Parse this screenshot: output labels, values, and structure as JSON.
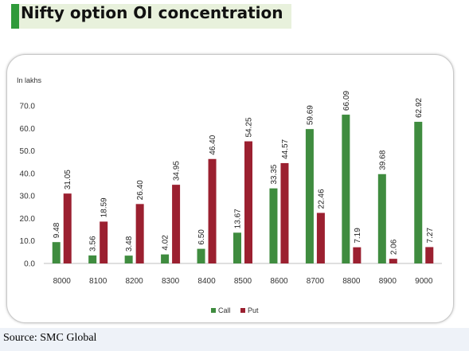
{
  "header": {
    "title": "Nifty option OI concentration"
  },
  "footer": {
    "source": "Source: SMC Global"
  },
  "colors": {
    "call": "#3f8c3f",
    "put": "#9b2030",
    "title_accent": "#2f9a3a"
  },
  "chart_data": {
    "type": "bar",
    "unit_label": "In lakhs",
    "categories": [
      "8000",
      "8100",
      "8200",
      "8300",
      "8400",
      "8500",
      "8600",
      "8700",
      "8800",
      "8900",
      "9000"
    ],
    "series": [
      {
        "name": "Call",
        "values": [
          9.48,
          3.56,
          3.48,
          4.02,
          6.5,
          13.67,
          33.35,
          59.69,
          66.09,
          39.68,
          62.92
        ],
        "labels": [
          "9.48",
          "3.56",
          "3.48",
          "4.02",
          "6.50",
          "13.67",
          "33.35",
          "59.69",
          "66.09",
          "39.68",
          "62.92"
        ]
      },
      {
        "name": "Put",
        "values": [
          31.05,
          18.59,
          26.4,
          34.95,
          46.4,
          54.25,
          44.57,
          22.46,
          7.19,
          2.06,
          7.27
        ],
        "labels": [
          "31.05",
          "18.59",
          "26.40",
          "34.95",
          "46.40",
          "54.25",
          "44.57",
          "22.46",
          "7.19",
          "2.06",
          "7.27"
        ]
      }
    ],
    "y_ticks": [
      "0.0",
      "10.0",
      "20.0",
      "30.0",
      "40.0",
      "50.0",
      "60.0",
      "70.0"
    ],
    "ylim": [
      0,
      70
    ],
    "grid": false,
    "legend_position": "bottom-center"
  }
}
